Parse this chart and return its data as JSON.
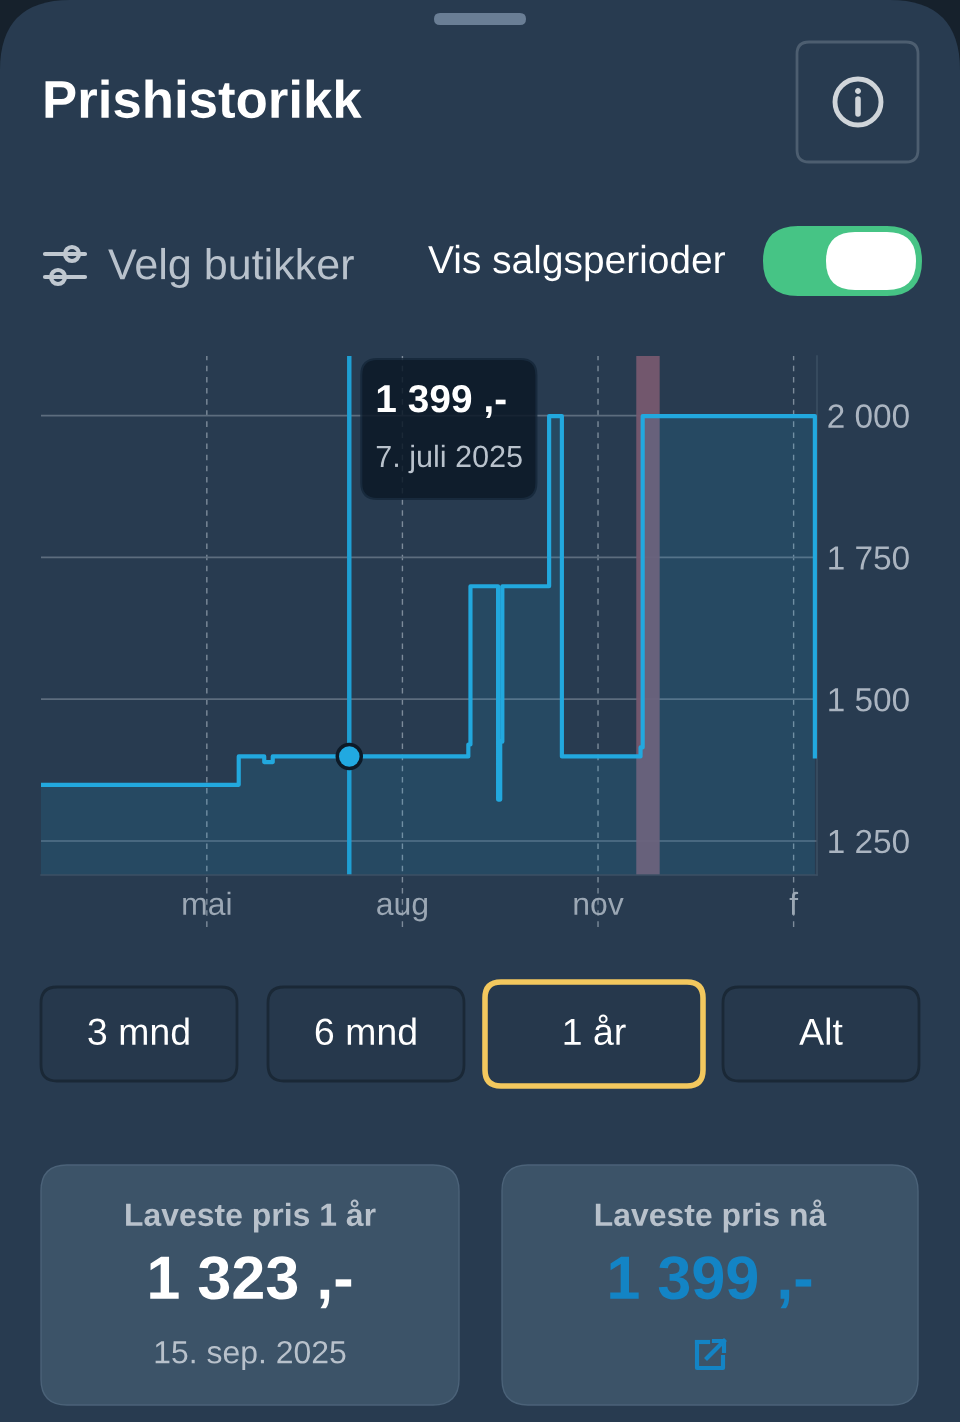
{
  "chart_data": {
    "type": "area",
    "title": "Prishistorikk",
    "series": [
      {
        "color": "#22a8de",
        "x": [
          "2025-02-12",
          "2025-05-16",
          "2025-05-16",
          "2025-05-28",
          "2025-05-28",
          "2025-06-01",
          "2025-06-01",
          "2025-09-01",
          "2025-09-01",
          "2025-09-02",
          "2025-09-02",
          "2025-09-15",
          "2025-09-15",
          "2025-09-16",
          "2025-09-16",
          "2025-09-17",
          "2025-09-17",
          "2025-10-09",
          "2025-10-09",
          "2025-10-15",
          "2025-10-15",
          "2025-11-21",
          "2025-11-21",
          "2025-11-22",
          "2025-11-22",
          "2026-02-11",
          "2026-02-11"
        ],
        "values": [
          1349,
          1349,
          1399,
          1399,
          1389,
          1389,
          1399,
          1399,
          1420,
          1420,
          1699,
          1699,
          1323,
          1323,
          1425,
          1425,
          1699,
          1699,
          1999,
          1999,
          1399,
          1399,
          1415,
          1415,
          1999,
          1999,
          1399
        ]
      },
      {
        "type": "scatter",
        "color": "#21a9e1",
        "marker": "circle",
        "x": [
          "2025-07-07"
        ],
        "values": [
          1399
        ]
      }
    ],
    "xlim": [
      "2025-02-12",
      "2026-02-12"
    ],
    "xticks": [
      {
        "value": "2025-05-01",
        "label": "mai"
      },
      {
        "value": "2025-08-01",
        "label": "aug"
      },
      {
        "value": "2025-11-01",
        "label": "nov"
      },
      {
        "value": "2026-02-01",
        "label": "f"
      }
    ],
    "ylim": [
      1190,
      2105
    ],
    "yticks": [
      {
        "value": 1250,
        "label": "1 250"
      },
      {
        "value": 1500,
        "label": "1 500"
      },
      {
        "value": 1750,
        "label": "1 750"
      },
      {
        "value": 2000,
        "label": "2 000"
      }
    ],
    "grid": true,
    "ref_lines": [
      {
        "axis": "x",
        "value": "2025-07-07",
        "color": "#1e9fd3"
      }
    ],
    "bands": [
      {
        "axis": "x",
        "from": "2025-11-19",
        "to": "2025-11-30",
        "color": "#76596f"
      }
    ],
    "annotations": [
      "1 399 ,-",
      "7. juli 2025",
      "Velg butikker",
      "Vis salgsperioder",
      "3 mnd",
      "6 mnd",
      "1 år",
      "Alt",
      "Laveste pris 1 år",
      "1 323 ,-",
      "15. sep. 2025",
      "Laveste pris nå",
      "1 399 ,-"
    ]
  }
}
